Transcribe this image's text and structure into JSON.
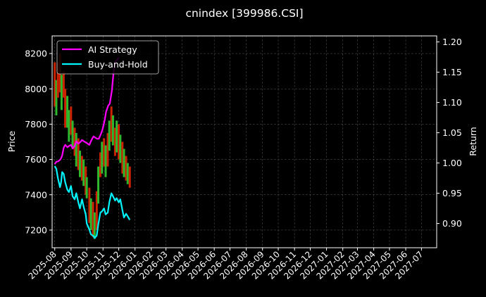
{
  "chart_data": {
    "type": "line",
    "title": "cnindex [399986.CSI]",
    "ylabel_left": "Price",
    "ylabel_right": "Return",
    "grid": true,
    "legend_position": "top-left",
    "ylim_left": [
      7100,
      8300
    ],
    "ylim_right": [
      0.86,
      1.21
    ],
    "xlim": [
      "2025-07-27",
      "2027-07-30"
    ],
    "yticks_left": [
      "7200",
      "7400",
      "7600",
      "7800",
      "8000",
      "8200"
    ],
    "yticks_right": [
      "0.90",
      "0.95",
      "1.00",
      "1.05",
      "1.10",
      "1.15",
      "1.20"
    ],
    "xticks": [
      "2025-08",
      "2025-09",
      "2025-10",
      "2025-11",
      "2025-12",
      "2026-01",
      "2026-02",
      "2026-03",
      "2026-04",
      "2026-05",
      "2026-06",
      "2026-07",
      "2026-08",
      "2026-09",
      "2026-10",
      "2026-11",
      "2026-12",
      "2027-01",
      "2027-02",
      "2027-03",
      "2027-04",
      "2027-05",
      "2027-06",
      "2027-07"
    ],
    "series": [
      {
        "name": "AI Strategy",
        "axis": "right",
        "color": "#ff00ff",
        "points": [
          [
            "2025-08-01",
            0.998
          ],
          [
            "2025-08-04",
            1.002
          ],
          [
            "2025-08-08",
            1.003
          ],
          [
            "2025-08-12",
            1.006
          ],
          [
            "2025-08-15",
            1.012
          ],
          [
            "2025-08-18",
            1.025
          ],
          [
            "2025-08-21",
            1.03
          ],
          [
            "2025-08-25",
            1.026
          ],
          [
            "2025-08-28",
            1.028
          ],
          [
            "2025-09-01",
            1.03
          ],
          [
            "2025-09-04",
            1.024
          ],
          [
            "2025-09-08",
            1.028
          ],
          [
            "2025-09-11",
            1.036
          ],
          [
            "2025-09-15",
            1.032
          ],
          [
            "2025-09-18",
            1.034
          ],
          [
            "2025-09-22",
            1.038
          ],
          [
            "2025-09-25",
            1.036
          ],
          [
            "2025-10-01",
            1.033
          ],
          [
            "2025-10-06",
            1.03
          ],
          [
            "2025-10-10",
            1.038
          ],
          [
            "2025-10-14",
            1.044
          ],
          [
            "2025-10-17",
            1.042
          ],
          [
            "2025-10-21",
            1.04
          ],
          [
            "2025-10-24",
            1.04
          ],
          [
            "2025-10-28",
            1.048
          ],
          [
            "2025-10-31",
            1.055
          ],
          [
            "2025-11-04",
            1.07
          ],
          [
            "2025-11-07",
            1.085
          ],
          [
            "2025-11-11",
            1.095
          ],
          [
            "2025-11-14",
            1.098
          ],
          [
            "2025-11-18",
            1.12
          ],
          [
            "2025-11-21",
            1.15
          ],
          [
            "2025-11-25",
            1.168
          ],
          [
            "2025-11-28",
            1.17
          ],
          [
            "2025-12-01",
            1.175
          ]
        ]
      },
      {
        "name": "Buy-and-Hold",
        "axis": "right",
        "color": "#00f5ff",
        "points": [
          [
            "2025-08-01",
            0.995
          ],
          [
            "2025-08-04",
            0.99
          ],
          [
            "2025-08-07",
            0.975
          ],
          [
            "2025-08-11",
            0.96
          ],
          [
            "2025-08-13",
            0.968
          ],
          [
            "2025-08-15",
            0.985
          ],
          [
            "2025-08-18",
            0.982
          ],
          [
            "2025-08-21",
            0.968
          ],
          [
            "2025-08-25",
            0.956
          ],
          [
            "2025-08-28",
            0.952
          ],
          [
            "2025-09-01",
            0.962
          ],
          [
            "2025-09-04",
            0.945
          ],
          [
            "2025-09-08",
            0.94
          ],
          [
            "2025-09-11",
            0.95
          ],
          [
            "2025-09-15",
            0.935
          ],
          [
            "2025-09-18",
            0.925
          ],
          [
            "2025-09-22",
            0.94
          ],
          [
            "2025-09-25",
            0.928
          ],
          [
            "2025-09-29",
            0.915
          ],
          [
            "2025-10-01",
            0.9
          ],
          [
            "2025-10-06",
            0.89
          ],
          [
            "2025-10-09",
            0.882
          ],
          [
            "2025-10-13",
            0.88
          ],
          [
            "2025-10-16",
            0.876
          ],
          [
            "2025-10-20",
            0.88
          ],
          [
            "2025-10-23",
            0.898
          ],
          [
            "2025-10-27",
            0.918
          ],
          [
            "2025-10-30",
            0.92
          ],
          [
            "2025-11-03",
            0.925
          ],
          [
            "2025-11-06",
            0.915
          ],
          [
            "2025-11-10",
            0.918
          ],
          [
            "2025-11-13",
            0.935
          ],
          [
            "2025-11-17",
            0.95
          ],
          [
            "2025-11-20",
            0.945
          ],
          [
            "2025-11-24",
            0.938
          ],
          [
            "2025-11-27",
            0.942
          ],
          [
            "2025-12-01",
            0.935
          ],
          [
            "2025-12-04",
            0.94
          ],
          [
            "2025-12-08",
            0.922
          ],
          [
            "2025-12-11",
            0.91
          ],
          [
            "2025-12-15",
            0.916
          ],
          [
            "2025-12-18",
            0.912
          ],
          [
            "2025-12-22",
            0.906
          ]
        ]
      }
    ],
    "candles": {
      "axis": "left",
      "up_color": "#2db82d",
      "down_color": "#cc2200",
      "bars": [
        [
          "2025-08-01",
          8150,
          7900,
          false
        ],
        [
          "2025-08-04",
          8050,
          7850,
          true
        ],
        [
          "2025-08-07",
          8150,
          7950,
          false
        ],
        [
          "2025-08-11",
          8200,
          7980,
          false
        ],
        [
          "2025-08-14",
          8080,
          7880,
          true
        ],
        [
          "2025-08-18",
          8100,
          7950,
          false
        ],
        [
          "2025-08-21",
          8000,
          7780,
          false
        ],
        [
          "2025-08-25",
          7960,
          7780,
          true
        ],
        [
          "2025-08-28",
          7880,
          7700,
          true
        ],
        [
          "2025-09-01",
          7900,
          7740,
          false
        ],
        [
          "2025-09-04",
          7820,
          7660,
          true
        ],
        [
          "2025-09-08",
          7780,
          7620,
          false
        ],
        [
          "2025-09-11",
          7750,
          7560,
          true
        ],
        [
          "2025-09-15",
          7720,
          7540,
          false
        ],
        [
          "2025-09-18",
          7650,
          7500,
          true
        ],
        [
          "2025-09-22",
          7620,
          7480,
          false
        ],
        [
          "2025-09-25",
          7600,
          7450,
          true
        ],
        [
          "2025-09-29",
          7560,
          7400,
          false
        ],
        [
          "2025-10-01",
          7500,
          7380,
          true
        ],
        [
          "2025-10-06",
          7440,
          7240,
          false
        ],
        [
          "2025-10-09",
          7380,
          7200,
          true
        ],
        [
          "2025-10-13",
          7360,
          7160,
          false
        ],
        [
          "2025-10-16",
          7300,
          7150,
          true
        ],
        [
          "2025-10-20",
          7420,
          7200,
          false
        ],
        [
          "2025-10-23",
          7560,
          7350,
          true
        ],
        [
          "2025-10-27",
          7640,
          7500,
          false
        ],
        [
          "2025-10-30",
          7700,
          7520,
          true
        ],
        [
          "2025-11-03",
          7720,
          7560,
          false
        ],
        [
          "2025-11-06",
          7680,
          7500,
          true
        ],
        [
          "2025-11-10",
          7750,
          7560,
          false
        ],
        [
          "2025-11-13",
          7820,
          7650,
          true
        ],
        [
          "2025-11-17",
          7900,
          7700,
          false
        ],
        [
          "2025-11-20",
          7850,
          7680,
          true
        ],
        [
          "2025-11-24",
          7780,
          7620,
          false
        ],
        [
          "2025-11-27",
          7820,
          7640,
          true
        ],
        [
          "2025-12-01",
          7800,
          7600,
          false
        ],
        [
          "2025-12-04",
          7740,
          7580,
          true
        ],
        [
          "2025-12-08",
          7700,
          7520,
          false
        ],
        [
          "2025-12-11",
          7660,
          7500,
          true
        ],
        [
          "2025-12-15",
          7620,
          7480,
          false
        ],
        [
          "2025-12-18",
          7580,
          7460,
          true
        ],
        [
          "2025-12-22",
          7560,
          7440,
          false
        ]
      ]
    }
  }
}
